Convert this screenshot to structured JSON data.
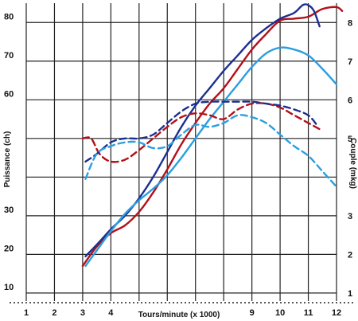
{
  "chart_data": {
    "type": "line",
    "x_axis": {
      "label": "Tours/minute (x 1000)",
      "range": [
        1,
        12
      ],
      "ticks": [
        "1",
        "2",
        "3",
        "4",
        "5",
        "6",
        "7",
        "8",
        "9",
        "10",
        "11",
        "12"
      ],
      "printed_ticks": [
        1,
        2,
        3,
        4,
        9,
        10,
        11,
        12
      ]
    },
    "y_left": {
      "label": "Puissance (ch)",
      "range": [
        7.5,
        85
      ],
      "ticks": [
        10,
        20,
        30,
        40,
        50,
        60,
        70,
        80
      ],
      "tick_labels": [
        "10",
        "20",
        "30",
        "",
        "",
        "60",
        "70",
        "80"
      ]
    },
    "y_right": {
      "label": "Couple (mkg)",
      "range": [
        0.75,
        8.5
      ],
      "ticks": [
        "1",
        "2",
        "3",
        "4",
        "5",
        "6",
        "7",
        "8"
      ],
      "tick_labels": [
        "1",
        "2",
        "3",
        "",
        "5",
        "6",
        "7",
        "8"
      ]
    },
    "grid": true,
    "legend": "none",
    "colors": {
      "red": "#b3101a",
      "navy": "#1c2f8f",
      "light_blue": "#2a9fe0"
    },
    "series": [
      {
        "kind": "puissance",
        "color": "red",
        "style": "solid",
        "axis": "left",
        "points": [
          [
            3,
            17
          ],
          [
            3.5,
            22
          ],
          [
            4,
            25.5
          ],
          [
            4.5,
            27.5
          ],
          [
            5,
            31
          ],
          [
            5.5,
            36
          ],
          [
            6,
            42
          ],
          [
            6.5,
            48.5
          ],
          [
            7,
            54
          ],
          [
            7.5,
            59
          ],
          [
            8,
            63
          ],
          [
            8.5,
            68
          ],
          [
            9,
            73
          ],
          [
            9.5,
            77
          ],
          [
            10,
            80.5
          ],
          [
            10.5,
            81
          ],
          [
            11,
            81.5
          ],
          [
            11.5,
            83.5
          ],
          [
            12,
            84
          ],
          [
            12.2,
            83
          ]
        ]
      },
      {
        "kind": "puissance",
        "color": "navy",
        "style": "solid",
        "axis": "left",
        "points": [
          [
            3.1,
            19.5
          ],
          [
            3.5,
            22.5
          ],
          [
            4,
            26.5
          ],
          [
            4.5,
            30
          ],
          [
            5,
            34.5
          ],
          [
            5.5,
            40
          ],
          [
            6,
            46.5
          ],
          [
            6.5,
            53
          ],
          [
            7,
            58.5
          ],
          [
            7.5,
            63
          ],
          [
            8,
            67.5
          ],
          [
            8.5,
            71.5
          ],
          [
            9,
            75.5
          ],
          [
            9.5,
            78.5
          ],
          [
            10,
            81
          ],
          [
            10.5,
            82.5
          ],
          [
            10.8,
            84.5
          ],
          [
            11,
            84.5
          ],
          [
            11.2,
            83
          ],
          [
            11.4,
            79
          ]
        ]
      },
      {
        "kind": "puissance",
        "color": "light_blue",
        "style": "solid",
        "axis": "left",
        "points": [
          [
            3.1,
            17
          ],
          [
            3.5,
            21
          ],
          [
            4,
            26
          ],
          [
            4.5,
            30.5
          ],
          [
            5,
            34
          ],
          [
            5.5,
            37
          ],
          [
            6,
            40.5
          ],
          [
            6.5,
            45
          ],
          [
            7,
            50
          ],
          [
            7.5,
            55
          ],
          [
            8,
            59.5
          ],
          [
            8.5,
            64
          ],
          [
            9,
            68.5
          ],
          [
            9.5,
            72
          ],
          [
            10,
            73.5
          ],
          [
            10.5,
            73
          ],
          [
            11,
            71.5
          ],
          [
            11.5,
            68
          ],
          [
            12,
            64
          ]
        ]
      },
      {
        "kind": "couple",
        "color": "red",
        "style": "dashed",
        "axis": "right",
        "points": [
          [
            3,
            5.0
          ],
          [
            3.3,
            5.0
          ],
          [
            3.6,
            4.6
          ],
          [
            4,
            4.4
          ],
          [
            4.5,
            4.45
          ],
          [
            5,
            4.7
          ],
          [
            5.5,
            5.0
          ],
          [
            6,
            5.3
          ],
          [
            6.5,
            5.55
          ],
          [
            7,
            5.65
          ],
          [
            7.5,
            5.6
          ],
          [
            8,
            5.5
          ],
          [
            8.5,
            5.75
          ],
          [
            9,
            5.9
          ],
          [
            9.5,
            5.9
          ],
          [
            10,
            5.8
          ],
          [
            10.5,
            5.6
          ],
          [
            11,
            5.4
          ],
          [
            11.5,
            5.2
          ]
        ]
      },
      {
        "kind": "couple",
        "color": "navy",
        "style": "dashed",
        "axis": "right",
        "points": [
          [
            3.1,
            4.4
          ],
          [
            3.5,
            4.6
          ],
          [
            4,
            4.9
          ],
          [
            4.5,
            5.0
          ],
          [
            5,
            5.0
          ],
          [
            5.5,
            5.1
          ],
          [
            6,
            5.4
          ],
          [
            6.5,
            5.7
          ],
          [
            7,
            5.9
          ],
          [
            7.5,
            5.95
          ],
          [
            8,
            5.95
          ],
          [
            8.5,
            5.95
          ],
          [
            9,
            5.95
          ],
          [
            9.5,
            5.9
          ],
          [
            10,
            5.85
          ],
          [
            10.5,
            5.75
          ],
          [
            11,
            5.6
          ],
          [
            11.3,
            5.35
          ]
        ]
      },
      {
        "kind": "couple",
        "color": "light_blue",
        "style": "dashed",
        "axis": "right",
        "points": [
          [
            3.1,
            3.95
          ],
          [
            3.5,
            4.6
          ],
          [
            4,
            4.8
          ],
          [
            4.5,
            4.9
          ],
          [
            5,
            4.9
          ],
          [
            5.5,
            4.75
          ],
          [
            6,
            4.8
          ],
          [
            6.5,
            5.1
          ],
          [
            7,
            5.35
          ],
          [
            7.5,
            5.3
          ],
          [
            8,
            5.4
          ],
          [
            8.5,
            5.6
          ],
          [
            9,
            5.55
          ],
          [
            9.5,
            5.4
          ],
          [
            10,
            5.1
          ],
          [
            10.5,
            4.8
          ],
          [
            11,
            4.55
          ],
          [
            11.5,
            4.15
          ],
          [
            12,
            3.75
          ]
        ]
      }
    ]
  }
}
